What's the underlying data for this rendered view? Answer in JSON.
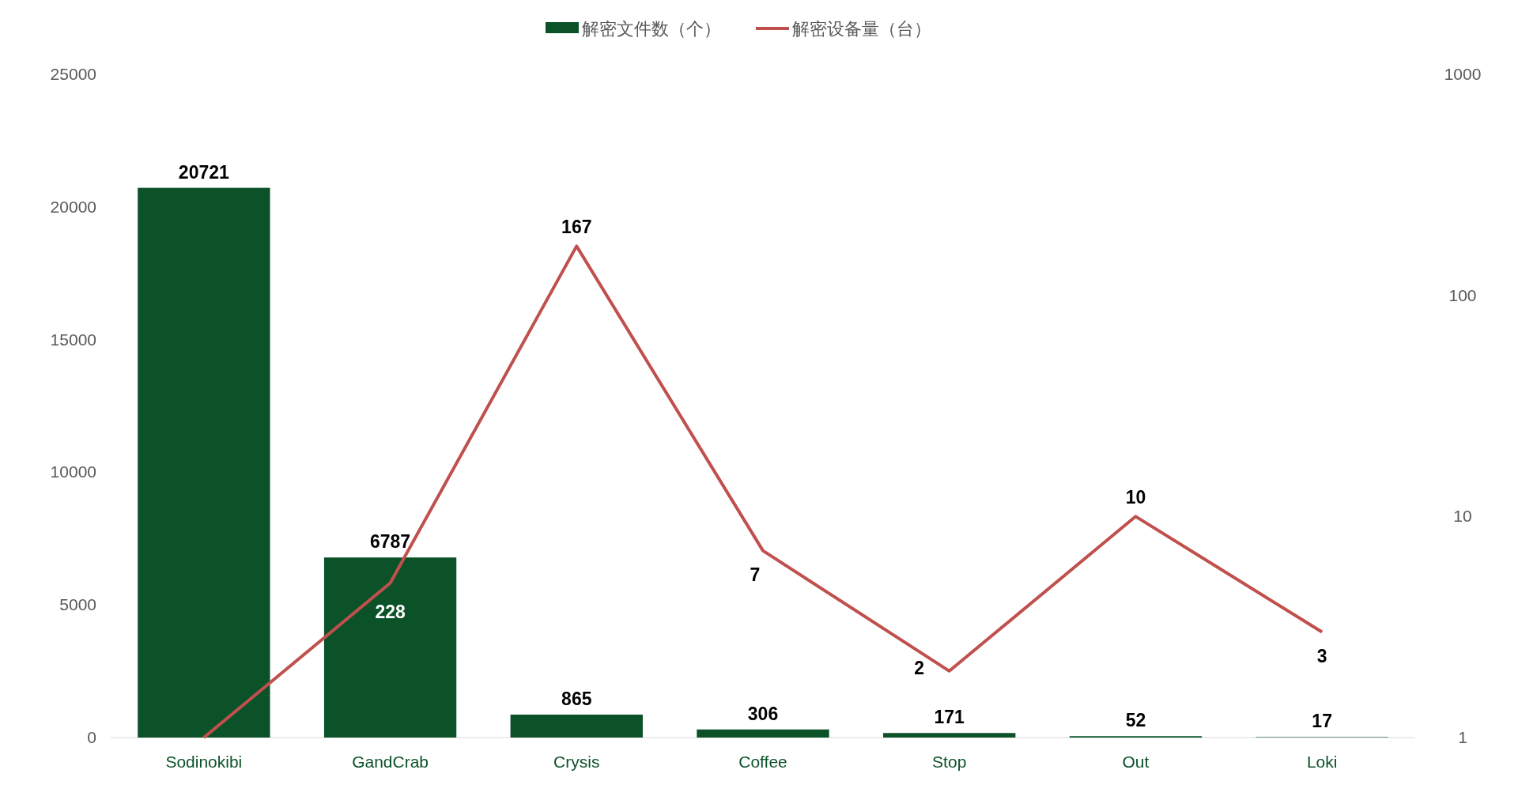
{
  "chart_data": {
    "type": "bar",
    "categories": [
      "Sodinokibi",
      "GandCrab",
      "Crysis",
      "Coffee",
      "Stop",
      "Out",
      "Loki"
    ],
    "series": [
      {
        "name": "解密文件数（个）",
        "color": "#0b5229",
        "values": [
          20721,
          6787,
          865,
          306,
          171,
          52,
          17
        ],
        "data_labels": true
      },
      {
        "name": "解密设备量（台）",
        "type": "line",
        "axis": "y2",
        "color": "#c0504d",
        "values": [
          1,
          5,
          167,
          7,
          2,
          10,
          3
        ],
        "value_labels": [
          null,
          null,
          "167",
          "7",
          "2",
          "10",
          "3"
        ]
      }
    ],
    "annotations": [
      "228"
    ],
    "ylim": [
      0,
      25000
    ],
    "yticks": [
      0,
      5000,
      10000,
      15000,
      20000,
      25000
    ],
    "y2lim": [
      1,
      1000
    ],
    "y2ticks": [
      1,
      10,
      100,
      1000
    ],
    "log": "y2",
    "grid": false,
    "legend": "top",
    "marker": "none",
    "line_style": "solid"
  }
}
